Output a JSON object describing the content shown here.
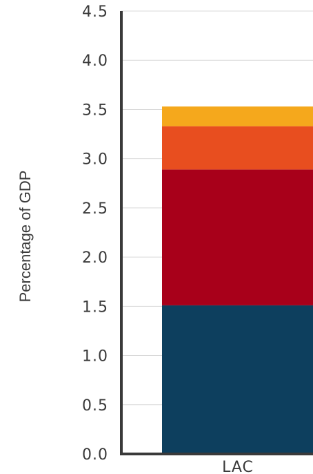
{
  "chart_data": {
    "type": "bar",
    "stacked": true,
    "categories": [
      "LAC"
    ],
    "series": [
      {
        "values": [
          1.51
        ],
        "color": "#0d3f5e"
      },
      {
        "values": [
          1.38
        ],
        "color": "#a8001a"
      },
      {
        "values": [
          0.44
        ],
        "color": "#e84e1f"
      },
      {
        "values": [
          0.2
        ],
        "color": "#f5a81c"
      }
    ],
    "ylabel": "Percentage of GDP",
    "ylim": [
      0,
      4.5
    ],
    "yticks": [
      "0.0",
      "0.5",
      "1.0",
      "1.5",
      "2.0",
      "2.5",
      "3.0",
      "3.5",
      "4.0",
      "4.5"
    ],
    "grid": true,
    "colors": {
      "axis": "#3a3a3a",
      "grid": "#d9d9d9",
      "text": "#3a3a3a"
    }
  }
}
